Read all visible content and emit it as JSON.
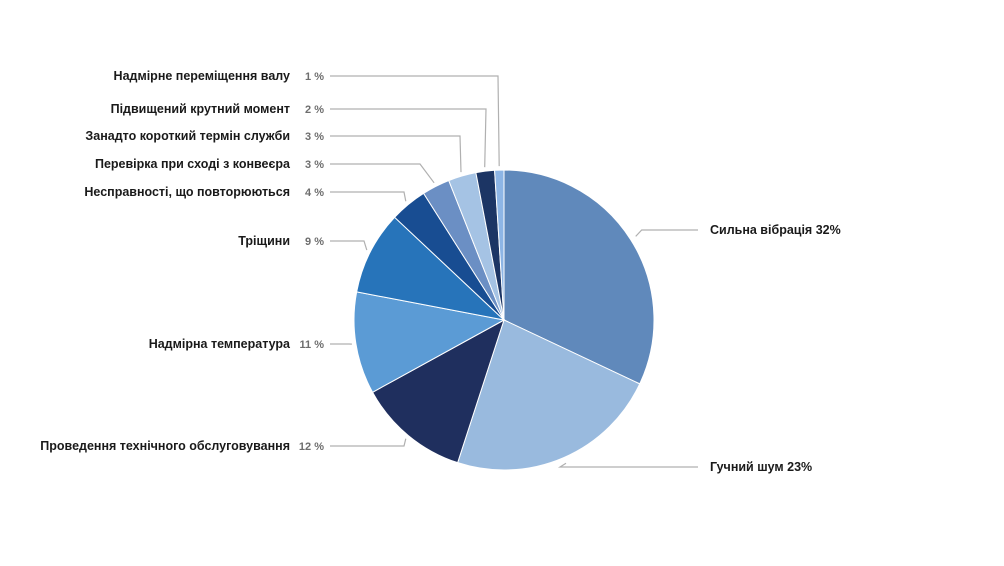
{
  "chart_data": {
    "type": "pie",
    "slices": [
      {
        "label": "Сильна вібрація",
        "value": 32,
        "text": "Сильна вібрація 32%",
        "color": "#6089bb"
      },
      {
        "label": "Гучний шум",
        "value": 23,
        "text": "Гучний шум 23%",
        "color": "#99bade"
      },
      {
        "label": "Проведення технічного обслуговування",
        "value": 12,
        "pct_text": "12 %",
        "color": "#1f2f5e"
      },
      {
        "label": "Надмірна температура",
        "value": 11,
        "pct_text": "11 %",
        "color": "#5b9bd5"
      },
      {
        "label": "Тріщини",
        "value": 9,
        "pct_text": "9 %",
        "color": "#2774ba"
      },
      {
        "label": "Несправності, що повторюються",
        "value": 4,
        "pct_text": "4 %",
        "color": "#184d92"
      },
      {
        "label": "Перевірка при сході з конвеєра",
        "value": 3,
        "pct_text": "3 %",
        "color": "#6b8fc4"
      },
      {
        "label": "Занадто короткий термін служби",
        "value": 3,
        "pct_text": "3 %",
        "color": "#a5c3e4"
      },
      {
        "label": "Підвищений крутний момент",
        "value": 2,
        "pct_text": "2 %",
        "color": "#1c3564"
      },
      {
        "label": "Надмірне переміщення валу",
        "value": 1,
        "pct_text": "1 %",
        "color": "#8db5e5"
      }
    ]
  }
}
